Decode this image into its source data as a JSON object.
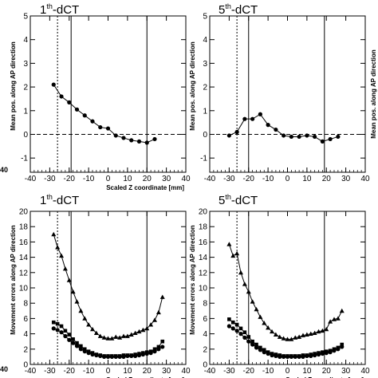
{
  "figure": {
    "edge_text": {
      "left_top": "40",
      "left_bottom": "40",
      "right_ylabel": "Mean pos. along AP direction"
    }
  },
  "chart_data": [
    {
      "type": "line",
      "title_prefix": "1",
      "title_sup": "th",
      "title_suffix": "-dCT",
      "xlabel": "Scaled Z coordinate [mm]",
      "ylabel": "Mean pos. along AP direction",
      "xlim": [
        -40,
        40
      ],
      "ylim": [
        -1.6,
        5
      ],
      "xticks": [
        -40,
        -30,
        -20,
        -10,
        0,
        10,
        20,
        30,
        40
      ],
      "yticks": [
        -1,
        0,
        1,
        2,
        3,
        4,
        5
      ],
      "vlines_dotted": [
        -26
      ],
      "vlines_solid": [
        -19,
        20
      ],
      "hline_dashed": 0,
      "series": [
        {
          "marker": "circle",
          "x": [
            -28,
            -24,
            -20,
            -16,
            -12,
            -8,
            -4,
            0,
            4,
            8,
            12,
            16,
            20,
            24
          ],
          "y": [
            2.1,
            1.6,
            1.35,
            1.05,
            0.8,
            0.55,
            0.3,
            0.25,
            -0.05,
            -0.15,
            -0.25,
            -0.3,
            -0.35,
            -0.2
          ]
        }
      ]
    },
    {
      "type": "line",
      "title_prefix": "5",
      "title_sup": "th",
      "title_suffix": "-dCT",
      "xlabel": "",
      "ylabel": "Mean pos. along AP direction",
      "xlim": [
        -40,
        40
      ],
      "ylim": [
        -1.6,
        5
      ],
      "xticks": [
        -40,
        -30,
        -20,
        -10,
        0,
        10,
        20,
        30,
        40
      ],
      "yticks": [
        -1,
        0,
        1,
        2,
        3,
        4,
        5
      ],
      "vlines_dotted": [
        -26
      ],
      "vlines_solid": [
        -20,
        19
      ],
      "hline_dashed": 0,
      "series": [
        {
          "marker": "circle",
          "x": [
            -30,
            -26,
            -22,
            -18,
            -14,
            -10,
            -6,
            -2,
            2,
            6,
            10,
            14,
            18,
            22,
            26
          ],
          "y": [
            -0.05,
            0.1,
            0.65,
            0.65,
            0.85,
            0.4,
            0.2,
            -0.05,
            -0.1,
            -0.1,
            -0.05,
            -0.1,
            -0.3,
            -0.2,
            -0.1
          ]
        }
      ]
    },
    {
      "type": "line",
      "title_prefix": "1",
      "title_sup": "th",
      "title_suffix": "-dCT",
      "xlabel": "Scaled Z coordinate [mm]",
      "ylabel": "Movement errors along AP direction",
      "xlim": [
        -40,
        40
      ],
      "ylim": [
        0,
        20
      ],
      "xticks": [
        -40,
        -30,
        -20,
        -10,
        0,
        10,
        20,
        30,
        40
      ],
      "yticks": [
        0,
        2,
        4,
        6,
        8,
        10,
        12,
        14,
        16,
        18,
        20
      ],
      "vlines_dotted": [
        -26
      ],
      "vlines_solid": [
        -19,
        20
      ],
      "hline_dashed": null,
      "series": [
        {
          "marker": "triangle",
          "x": [
            -28,
            -26,
            -24,
            -22,
            -20,
            -18,
            -16,
            -14,
            -12,
            -10,
            -8,
            -6,
            -4,
            -2,
            0,
            2,
            4,
            6,
            8,
            10,
            12,
            14,
            16,
            18,
            20,
            22,
            24,
            26,
            28
          ],
          "y": [
            17,
            15.3,
            14.2,
            12.5,
            11,
            9.5,
            8.2,
            7,
            6,
            5.2,
            4.6,
            4.1,
            3.7,
            3.5,
            3.4,
            3.4,
            3.6,
            3.5,
            3.7,
            3.7,
            3.9,
            4.1,
            4.3,
            4.5,
            4.7,
            5.2,
            5.8,
            6.8,
            8.8
          ]
        },
        {
          "marker": "square",
          "x": [
            -28,
            -26,
            -24,
            -22,
            -20,
            -18,
            -16,
            -14,
            -12,
            -10,
            -8,
            -6,
            -4,
            -2,
            0,
            2,
            4,
            6,
            8,
            10,
            12,
            14,
            16,
            18,
            20,
            22,
            24,
            26,
            28
          ],
          "y": [
            5.5,
            5.3,
            5,
            4.4,
            3.9,
            3.3,
            2.8,
            2.4,
            2,
            1.7,
            1.5,
            1.3,
            1.2,
            1.1,
            1.1,
            1.1,
            1.1,
            1.1,
            1.2,
            1.2,
            1.2,
            1.3,
            1.4,
            1.5,
            1.6,
            1.7,
            2,
            2.3,
            3
          ]
        },
        {
          "marker": "circle",
          "x": [
            -28,
            -26,
            -24,
            -22,
            -20,
            -18,
            -16,
            -14,
            -12,
            -10,
            -8,
            -6,
            -4,
            -2,
            0,
            2,
            4,
            6,
            8,
            10,
            12,
            14,
            16,
            18,
            20,
            22,
            24,
            26,
            28
          ],
          "y": [
            4.7,
            4.5,
            4.2,
            3.7,
            3.2,
            2.8,
            2.4,
            2,
            1.7,
            1.5,
            1.3,
            1.2,
            1.1,
            1,
            1,
            1,
            1,
            1,
            1,
            1.1,
            1.1,
            1.1,
            1.2,
            1.3,
            1.4,
            1.5,
            1.7,
            2,
            2.3
          ]
        }
      ]
    },
    {
      "type": "line",
      "title_prefix": "5",
      "title_sup": "th",
      "title_suffix": "-dCT",
      "xlabel": "Scaled Z coordinate [mm]",
      "ylabel": "Movement errors along AP direction",
      "xlim": [
        -40,
        40
      ],
      "ylim": [
        0,
        20
      ],
      "xticks": [
        -40,
        -30,
        -20,
        -10,
        0,
        10,
        20,
        30,
        40
      ],
      "yticks": [
        0,
        2,
        4,
        6,
        8,
        10,
        12,
        14,
        16,
        18,
        20
      ],
      "vlines_dotted": [
        -26
      ],
      "vlines_solid": [
        -20,
        19
      ],
      "hline_dashed": null,
      "series": [
        {
          "marker": "triangle",
          "x": [
            -30,
            -28,
            -26,
            -24,
            -22,
            -20,
            -18,
            -16,
            -14,
            -12,
            -10,
            -8,
            -6,
            -4,
            -2,
            0,
            2,
            4,
            6,
            8,
            10,
            12,
            14,
            16,
            18,
            20,
            22,
            24,
            26,
            28
          ],
          "y": [
            15.7,
            14.2,
            14.5,
            12,
            10.5,
            9.5,
            8.2,
            7.2,
            6.2,
            5.4,
            4.8,
            4.3,
            3.9,
            3.6,
            3.4,
            3.3,
            3.3,
            3.5,
            3.6,
            3.8,
            3.9,
            4,
            4.1,
            4.3,
            4.4,
            4.6,
            5.6,
            5.9,
            6,
            7
          ]
        },
        {
          "marker": "square",
          "x": [
            -30,
            -28,
            -26,
            -24,
            -22,
            -20,
            -18,
            -16,
            -14,
            -12,
            -10,
            -8,
            -6,
            -4,
            -2,
            0,
            2,
            4,
            6,
            8,
            10,
            12,
            14,
            16,
            18,
            20,
            22,
            24,
            26,
            28
          ],
          "y": [
            5.9,
            5.5,
            5.2,
            4.7,
            4.2,
            3.6,
            3,
            2.6,
            2.2,
            1.9,
            1.6,
            1.4,
            1.3,
            1.2,
            1.1,
            1.1,
            1.1,
            1.1,
            1.1,
            1.2,
            1.2,
            1.3,
            1.4,
            1.5,
            1.6,
            1.7,
            1.8,
            2,
            2.2,
            2.6
          ]
        },
        {
          "marker": "circle",
          "x": [
            -30,
            -28,
            -26,
            -24,
            -22,
            -20,
            -18,
            -16,
            -14,
            -12,
            -10,
            -8,
            -6,
            -4,
            -2,
            0,
            2,
            4,
            6,
            8,
            10,
            12,
            14,
            16,
            18,
            20,
            22,
            24,
            26,
            28
          ],
          "y": [
            5,
            4.7,
            4.4,
            4,
            3.5,
            3,
            2.6,
            2.2,
            1.9,
            1.6,
            1.4,
            1.2,
            1.1,
            1,
            1,
            1,
            1,
            1,
            1,
            1,
            1.1,
            1.1,
            1.2,
            1.3,
            1.4,
            1.5,
            1.6,
            1.8,
            2,
            2.3
          ]
        }
      ]
    }
  ]
}
